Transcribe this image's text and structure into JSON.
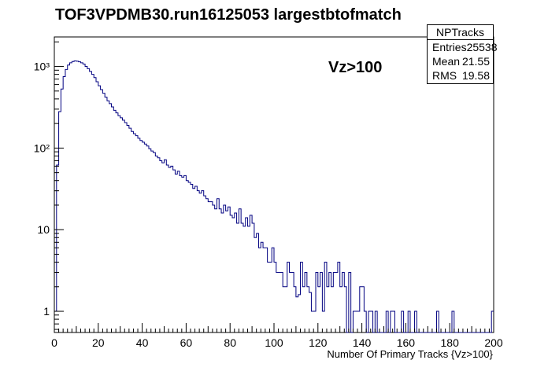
{
  "title": "TOF3VPDMB30.run16125053 largestbtofmatch",
  "annotation": "Vz>100",
  "stats": {
    "name": "NPTracks",
    "rows": [
      {
        "label": "Entries",
        "value": "25538"
      },
      {
        "label": "Mean",
        "value": "21.55"
      },
      {
        "label": "RMS",
        "value": "19.58"
      }
    ]
  },
  "colors": {
    "histogram": "#000080",
    "axis": "#000000"
  },
  "chart_data": {
    "type": "histogram",
    "xlabel": "Number Of Primary Tracks {Vz>100}",
    "ylabel": "",
    "xlim": [
      0,
      200
    ],
    "ylim": [
      0.55,
      2300
    ],
    "log_y": true,
    "grid": false,
    "x_ticks": [
      0,
      20,
      40,
      60,
      80,
      100,
      120,
      140,
      160,
      180,
      200
    ],
    "y_ticks": [
      {
        "value": 1,
        "label": "1"
      },
      {
        "value": 10,
        "label": "10"
      },
      {
        "value": 100,
        "label": "10²"
      },
      {
        "value": 1000,
        "label": "10³"
      }
    ],
    "bin_width": 1,
    "bin_start": 0,
    "counts": [
      1,
      62,
      280,
      530,
      750,
      920,
      1040,
      1110,
      1150,
      1170,
      1160,
      1140,
      1110,
      1070,
      1000,
      940,
      870,
      800,
      730,
      650,
      580,
      520,
      470,
      420,
      380,
      350,
      320,
      290,
      270,
      250,
      235,
      220,
      205,
      190,
      175,
      160,
      150,
      142,
      132,
      124,
      118,
      112,
      106,
      98,
      92,
      88,
      80,
      76,
      70,
      66,
      72,
      62,
      58,
      60,
      54,
      48,
      52,
      46,
      44,
      46,
      40,
      38,
      36,
      32,
      34,
      30,
      28,
      30,
      26,
      24,
      22,
      22,
      20,
      18,
      24,
      18,
      16,
      20,
      17,
      19,
      15,
      14,
      16,
      12,
      18,
      12,
      11,
      14,
      11,
      15,
      12,
      8,
      9,
      6,
      7,
      6,
      6,
      4,
      4,
      6,
      4,
      3,
      3,
      3,
      2,
      2,
      4,
      3,
      3,
      2,
      1.5,
      1.6,
      4,
      2,
      3,
      2,
      1.7,
      1,
      1,
      3,
      2,
      3,
      1,
      4,
      2,
      3,
      2,
      3,
      3,
      4,
      2,
      3,
      2,
      0,
      3,
      0,
      1,
      1,
      1,
      2,
      2,
      1,
      0,
      1,
      1,
      0,
      1,
      0,
      0,
      0,
      0,
      1,
      0,
      1,
      1,
      0,
      0,
      0,
      1,
      0,
      0,
      1,
      0,
      0,
      1,
      0,
      0,
      0,
      0,
      0,
      0,
      0,
      0,
      0,
      1,
      0,
      0,
      0,
      0,
      0,
      0,
      1,
      0,
      0,
      0,
      0,
      0,
      0,
      0,
      0,
      0,
      0,
      0,
      0,
      0,
      0,
      0,
      0,
      0,
      1
    ]
  }
}
